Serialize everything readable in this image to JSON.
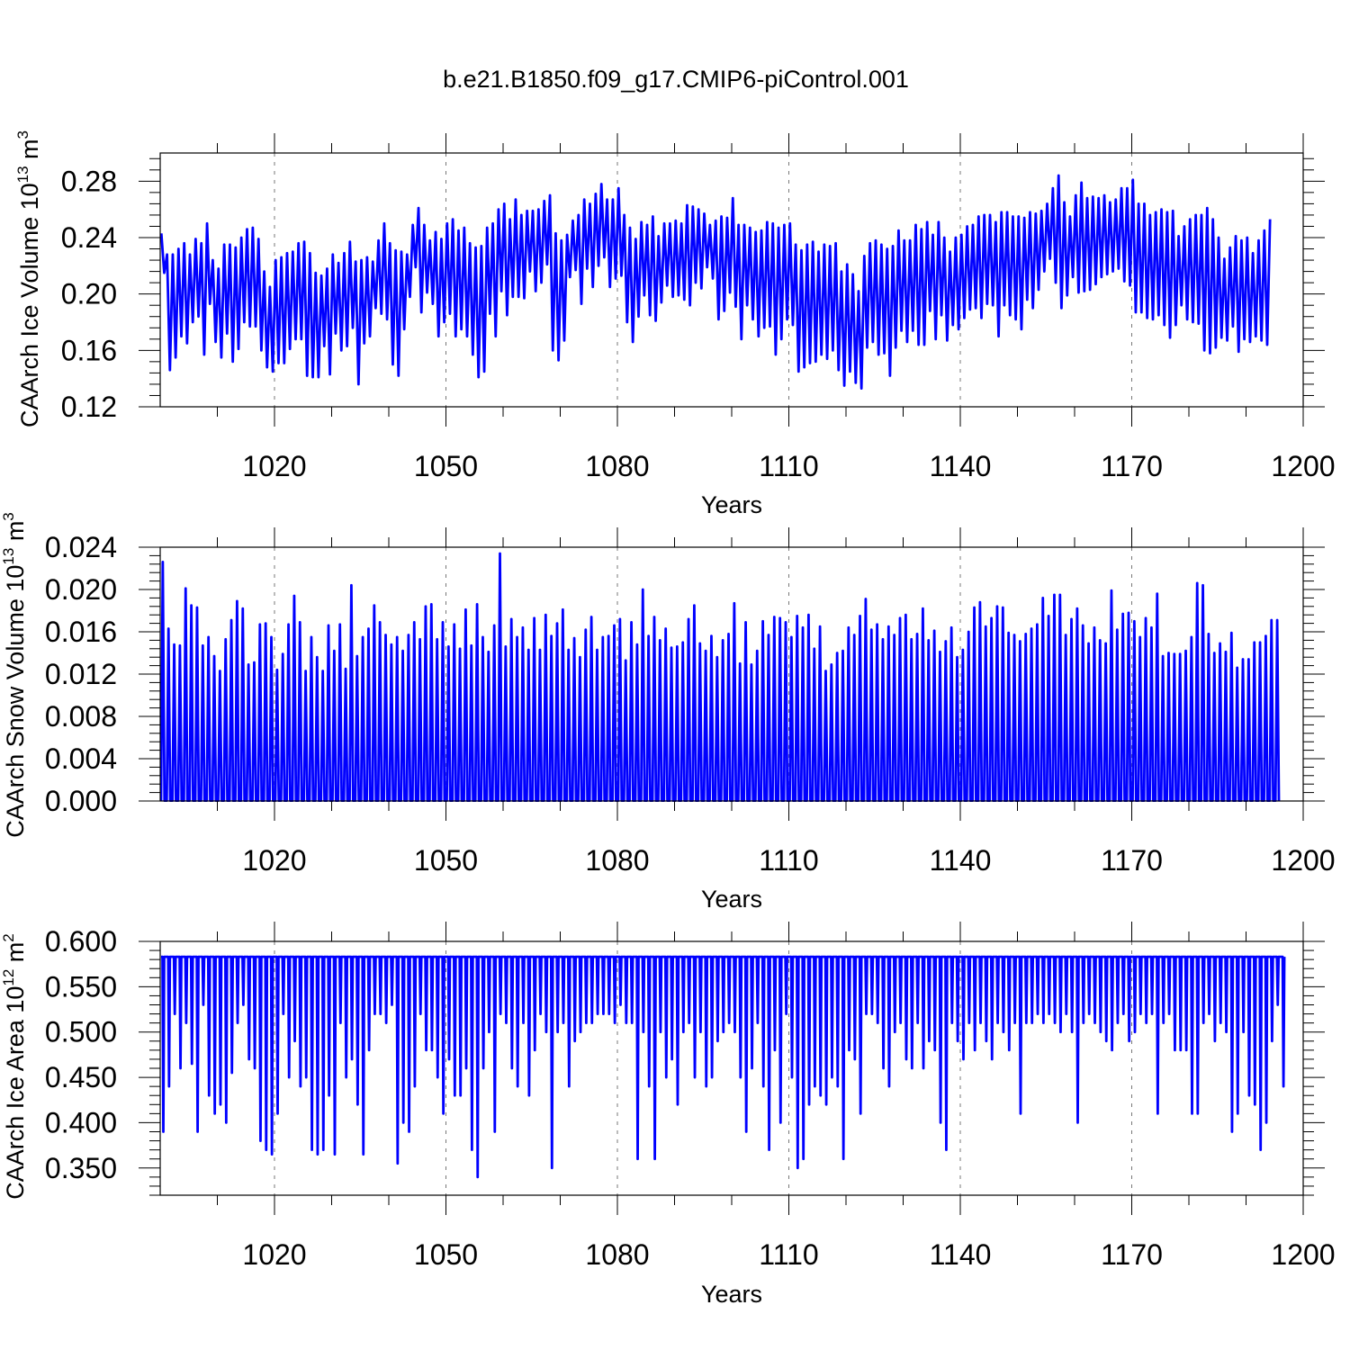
{
  "title": "b.e21.B1850.f09_g17.CMIP6-piControl.001",
  "line_color": "#0000ff",
  "chart_data": [
    {
      "type": "line",
      "ylabel": "CAArch Ice Volume 10",
      "ylabel_exp": "13",
      "ylabel_unit": " m",
      "ylabel_unit_exp": "3",
      "xlabel": "Years",
      "xlim": [
        1000,
        1200
      ],
      "ylim": [
        0.12,
        0.3
      ],
      "xticks": [
        1020,
        1050,
        1080,
        1110,
        1140,
        1170,
        1200
      ],
      "xtick_labels": [
        "1020",
        "1050",
        "1080",
        "1110",
        "1140",
        "1170",
        "1200"
      ],
      "yticks": [
        0.12,
        0.16,
        0.2,
        0.24,
        0.28
      ],
      "ytick_labels": [
        "0.12",
        "0.16",
        "0.20",
        "0.24",
        "0.28"
      ],
      "grid": "vertical dashed at major x ticks",
      "series": [
        {
          "maxima": [
            0.243,
            0.228,
            0.228,
            0.232,
            0.236,
            0.228,
            0.239,
            0.236,
            0.25,
            0.224,
            0.218,
            0.235,
            0.235,
            0.233,
            0.24,
            0.246,
            0.247,
            0.239,
            0.216,
            0.205,
            0.224,
            0.226,
            0.229,
            0.23,
            0.236,
            0.237,
            0.229,
            0.215,
            0.213,
            0.218,
            0.228,
            0.222,
            0.229,
            0.237,
            0.223,
            0.224,
            0.226,
            0.223,
            0.238,
            0.25,
            0.236,
            0.231,
            0.23,
            0.228,
            0.249,
            0.261,
            0.249,
            0.238,
            0.244,
            0.239,
            0.25,
            0.253,
            0.245,
            0.247,
            0.236,
            0.233,
            0.234,
            0.247,
            0.25,
            0.26,
            0.264,
            0.253,
            0.267,
            0.256,
            0.259,
            0.259,
            0.26,
            0.266,
            0.27,
            0.243,
            0.238,
            0.242,
            0.252,
            0.256,
            0.267,
            0.264,
            0.271,
            0.278,
            0.267,
            0.267,
            0.275,
            0.256,
            0.247,
            0.239,
            0.251,
            0.249,
            0.255,
            0.241,
            0.25,
            0.25,
            0.252,
            0.25,
            0.263,
            0.262,
            0.26,
            0.257,
            0.249,
            0.252,
            0.255,
            0.254,
            0.268,
            0.249,
            0.249,
            0.247,
            0.244,
            0.245,
            0.251,
            0.25,
            0.247,
            0.249,
            0.25,
            0.235,
            0.231,
            0.235,
            0.237,
            0.23,
            0.235,
            0.234,
            0.236,
            0.216,
            0.221,
            0.214,
            0.202,
            0.227,
            0.236,
            0.238,
            0.235,
            0.232,
            0.234,
            0.245,
            0.238,
            0.238,
            0.249,
            0.246,
            0.251,
            0.242,
            0.251,
            0.24,
            0.23,
            0.24,
            0.242,
            0.248,
            0.249,
            0.255,
            0.256,
            0.256,
            0.251,
            0.258,
            0.258,
            0.255,
            0.255,
            0.254,
            0.258,
            0.257,
            0.259,
            0.264,
            0.275,
            0.284,
            0.265,
            0.255,
            0.27,
            0.279,
            0.268,
            0.269,
            0.268,
            0.27,
            0.265,
            0.267,
            0.275,
            0.275,
            0.281,
            0.264,
            0.264,
            0.256,
            0.258,
            0.26,
            0.258,
            0.259,
            0.241,
            0.248,
            0.253,
            0.256,
            0.256,
            0.261,
            0.253,
            0.24,
            0.225,
            0.233,
            0.241,
            0.238,
            0.24,
            0.229,
            0.238,
            0.245,
            0.253,
            0.243,
            0.235
          ],
          "minima": [
            0.215,
            0.146,
            0.155,
            0.17,
            0.165,
            0.18,
            0.184,
            0.157,
            0.193,
            0.166,
            0.155,
            0.172,
            0.152,
            0.161,
            0.18,
            0.177,
            0.177,
            0.16,
            0.148,
            0.145,
            0.151,
            0.151,
            0.161,
            0.168,
            0.168,
            0.142,
            0.141,
            0.141,
            0.163,
            0.143,
            0.172,
            0.16,
            0.163,
            0.176,
            0.136,
            0.165,
            0.17,
            0.19,
            0.186,
            0.182,
            0.15,
            0.142,
            0.175,
            0.198,
            0.219,
            0.187,
            0.201,
            0.193,
            0.17,
            0.18,
            0.186,
            0.17,
            0.175,
            0.17,
            0.157,
            0.141,
            0.145,
            0.186,
            0.17,
            0.202,
            0.185,
            0.198,
            0.198,
            0.197,
            0.216,
            0.202,
            0.208,
            0.221,
            0.16,
            0.153,
            0.167,
            0.212,
            0.217,
            0.193,
            0.218,
            0.205,
            0.22,
            0.226,
            0.205,
            0.211,
            0.213,
            0.18,
            0.166,
            0.184,
            0.199,
            0.185,
            0.181,
            0.194,
            0.206,
            0.198,
            0.199,
            0.196,
            0.192,
            0.208,
            0.204,
            0.219,
            0.211,
            0.182,
            0.188,
            0.201,
            0.191,
            0.168,
            0.192,
            0.182,
            0.17,
            0.176,
            0.177,
            0.157,
            0.168,
            0.182,
            0.178,
            0.145,
            0.148,
            0.151,
            0.152,
            0.157,
            0.154,
            0.16,
            0.146,
            0.135,
            0.145,
            0.137,
            0.133,
            0.162,
            0.166,
            0.157,
            0.158,
            0.142,
            0.162,
            0.174,
            0.166,
            0.174,
            0.164,
            0.164,
            0.188,
            0.168,
            0.185,
            0.167,
            0.178,
            0.175,
            0.183,
            0.189,
            0.19,
            0.183,
            0.193,
            0.192,
            0.17,
            0.192,
            0.185,
            0.182,
            0.175,
            0.196,
            0.19,
            0.203,
            0.216,
            0.225,
            0.208,
            0.19,
            0.199,
            0.212,
            0.201,
            0.202,
            0.203,
            0.207,
            0.212,
            0.214,
            0.216,
            0.218,
            0.209,
            0.206,
            0.187,
            0.187,
            0.183,
            0.182,
            0.185,
            0.178,
            0.169,
            0.178,
            0.192,
            0.182,
            0.18,
            0.179,
            0.16,
            0.158,
            0.162,
            0.169,
            0.167,
            0.177,
            0.159,
            0.168,
            0.166,
            0.17,
            0.167,
            0.164
          ]
        }
      ]
    },
    {
      "type": "line",
      "ylabel": "CAArch Snow Volume 10",
      "ylabel_exp": "13",
      "ylabel_unit": " m",
      "ylabel_unit_exp": "3",
      "xlabel": "Years",
      "xlim": [
        1000,
        1200
      ],
      "ylim": [
        0.0,
        0.024
      ],
      "xticks": [
        1020,
        1050,
        1080,
        1110,
        1140,
        1170,
        1200
      ],
      "xtick_labels": [
        "1020",
        "1050",
        "1080",
        "1110",
        "1140",
        "1170",
        "1200"
      ],
      "yticks": [
        0.0,
        0.004,
        0.008,
        0.012,
        0.016,
        0.02,
        0.024
      ],
      "ytick_labels": [
        "0.000",
        "0.004",
        "0.008",
        "0.012",
        "0.016",
        "0.020",
        "0.024"
      ],
      "grid": "vertical dashed at major x ticks",
      "series": [
        {
          "maxima": [
            0.0226,
            0.0163,
            0.0148,
            0.0147,
            0.0201,
            0.0185,
            0.0183,
            0.0147,
            0.0155,
            0.0137,
            0.0123,
            0.0153,
            0.0171,
            0.0189,
            0.0182,
            0.0129,
            0.0131,
            0.0167,
            0.0168,
            0.0155,
            0.0124,
            0.0139,
            0.0167,
            0.0194,
            0.0169,
            0.0123,
            0.0155,
            0.0136,
            0.0123,
            0.0166,
            0.0142,
            0.0167,
            0.0125,
            0.0204,
            0.0137,
            0.0155,
            0.0163,
            0.0185,
            0.0169,
            0.0157,
            0.0148,
            0.0155,
            0.0142,
            0.0157,
            0.0169,
            0.0153,
            0.0184,
            0.0186,
            0.0153,
            0.0169,
            0.0146,
            0.0167,
            0.0144,
            0.0181,
            0.0147,
            0.0186,
            0.0155,
            0.0141,
            0.0166,
            0.0234,
            0.0146,
            0.0172,
            0.0155,
            0.0164,
            0.0143,
            0.0173,
            0.0143,
            0.0176,
            0.0156,
            0.0168,
            0.0181,
            0.0143,
            0.0154,
            0.0136,
            0.0162,
            0.0174,
            0.0143,
            0.0155,
            0.0156,
            0.0166,
            0.0172,
            0.0133,
            0.0169,
            0.0148,
            0.02,
            0.0156,
            0.0174,
            0.0152,
            0.0163,
            0.0145,
            0.0146,
            0.015,
            0.0172,
            0.0185,
            0.0149,
            0.0142,
            0.0156,
            0.0136,
            0.0152,
            0.0158,
            0.0187,
            0.013,
            0.0169,
            0.0129,
            0.0142,
            0.017,
            0.0157,
            0.0174,
            0.0173,
            0.0169,
            0.0155,
            0.0175,
            0.0164,
            0.0176,
            0.0144,
            0.0165,
            0.0123,
            0.0129,
            0.014,
            0.0142,
            0.0164,
            0.0157,
            0.0175,
            0.0191,
            0.0162,
            0.0167,
            0.0153,
            0.0165,
            0.0157,
            0.0173,
            0.0176,
            0.0153,
            0.0158,
            0.0182,
            0.0152,
            0.0161,
            0.0141,
            0.0151,
            0.0164,
            0.0136,
            0.0143,
            0.016,
            0.0183,
            0.0188,
            0.0165,
            0.0173,
            0.0184,
            0.0183,
            0.0159,
            0.0157,
            0.0151,
            0.0158,
            0.0163,
            0.0167,
            0.0192,
            0.0175,
            0.0195,
            0.0195,
            0.0157,
            0.0172,
            0.0182,
            0.0166,
            0.0149,
            0.0164,
            0.0152,
            0.0149,
            0.0199,
            0.0162,
            0.0177,
            0.0178,
            0.017,
            0.0155,
            0.0173,
            0.0164,
            0.0196,
            0.0137,
            0.014,
            0.0139,
            0.0139,
            0.0142,
            0.0155,
            0.0206,
            0.0204,
            0.0158,
            0.014,
            0.0149,
            0.0141,
            0.0159,
            0.0126,
            0.0134,
            0.0134,
            0.015,
            0.015,
            0.0156,
            0.0171,
            0.0171
          ]
        }
      ]
    },
    {
      "type": "line",
      "ylabel": "CAArch Ice Area 10",
      "ylabel_exp": "12",
      "ylabel_unit": " m",
      "ylabel_unit_exp": "2",
      "xlabel": "Years",
      "xlim": [
        1000,
        1200
      ],
      "ylim": [
        0.32,
        0.6
      ],
      "xticks": [
        1020,
        1050,
        1080,
        1110,
        1140,
        1170,
        1200
      ],
      "xtick_labels": [
        "1020",
        "1050",
        "1080",
        "1110",
        "1140",
        "1170",
        "1200"
      ],
      "yticks": [
        0.35,
        0.4,
        0.45,
        0.5,
        0.55,
        0.6
      ],
      "ytick_labels": [
        "0.350",
        "0.400",
        "0.450",
        "0.500",
        "0.550",
        "0.600"
      ],
      "grid": "vertical dashed at major x ticks",
      "series": [
        {
          "max_value": 0.583,
          "minima": [
            0.39,
            0.44,
            0.52,
            0.46,
            0.51,
            0.465,
            0.39,
            0.53,
            0.43,
            0.41,
            0.42,
            0.4,
            0.455,
            0.51,
            0.53,
            0.47,
            0.46,
            0.38,
            0.37,
            0.365,
            0.41,
            0.52,
            0.45,
            0.49,
            0.44,
            0.45,
            0.37,
            0.365,
            0.37,
            0.43,
            0.365,
            0.51,
            0.45,
            0.47,
            0.42,
            0.365,
            0.48,
            0.52,
            0.52,
            0.51,
            0.53,
            0.355,
            0.4,
            0.39,
            0.44,
            0.52,
            0.48,
            0.48,
            0.45,
            0.41,
            0.47,
            0.43,
            0.43,
            0.46,
            0.37,
            0.34,
            0.46,
            0.5,
            0.39,
            0.52,
            0.51,
            0.46,
            0.44,
            0.51,
            0.43,
            0.48,
            0.52,
            0.5,
            0.35,
            0.5,
            0.51,
            0.44,
            0.49,
            0.5,
            0.51,
            0.51,
            0.52,
            0.52,
            0.52,
            0.51,
            0.53,
            0.51,
            0.51,
            0.36,
            0.5,
            0.44,
            0.36,
            0.5,
            0.45,
            0.47,
            0.42,
            0.5,
            0.51,
            0.45,
            0.5,
            0.44,
            0.45,
            0.49,
            0.5,
            0.51,
            0.5,
            0.45,
            0.39,
            0.46,
            0.51,
            0.44,
            0.37,
            0.48,
            0.4,
            0.52,
            0.45,
            0.35,
            0.36,
            0.42,
            0.44,
            0.43,
            0.42,
            0.45,
            0.44,
            0.36,
            0.48,
            0.47,
            0.41,
            0.52,
            0.52,
            0.51,
            0.46,
            0.44,
            0.5,
            0.51,
            0.47,
            0.46,
            0.51,
            0.46,
            0.49,
            0.48,
            0.4,
            0.37,
            0.51,
            0.49,
            0.47,
            0.51,
            0.48,
            0.51,
            0.49,
            0.47,
            0.51,
            0.5,
            0.48,
            0.51,
            0.41,
            0.51,
            0.51,
            0.52,
            0.51,
            0.52,
            0.51,
            0.5,
            0.52,
            0.5,
            0.4,
            0.51,
            0.52,
            0.51,
            0.5,
            0.49,
            0.48,
            0.51,
            0.52,
            0.49,
            0.5,
            0.52,
            0.51,
            0.52,
            0.41,
            0.51,
            0.52,
            0.48,
            0.48,
            0.48,
            0.41,
            0.41,
            0.51,
            0.52,
            0.49,
            0.51,
            0.5,
            0.39,
            0.41,
            0.5,
            0.43,
            0.42,
            0.37,
            0.4,
            0.49,
            0.53,
            0.44
          ]
        }
      ]
    }
  ]
}
